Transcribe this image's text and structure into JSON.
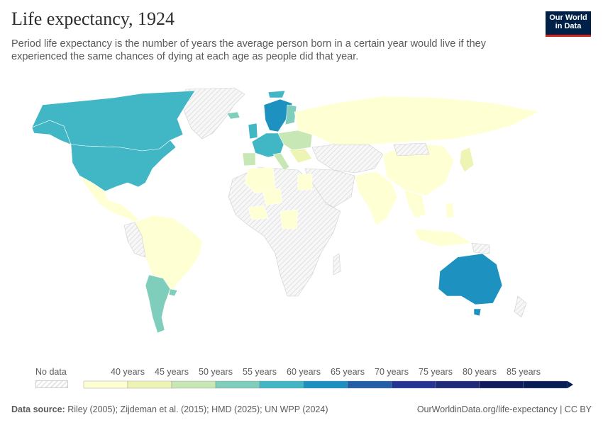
{
  "header": {
    "title": "Life expectancy, 1924",
    "subtitle": "Period life expectancy is the number of years the average person born in a certain year would live if they experienced the same chances of dying at each age as people did that year."
  },
  "logo": {
    "line1": "Our World",
    "line2": "in Data"
  },
  "legend": {
    "no_data_label": "No data",
    "bins": [
      {
        "label": "40 years",
        "color": "#ffffd4"
      },
      {
        "label": "45 years",
        "color": "#eef5b4"
      },
      {
        "label": "50 years",
        "color": "#c7e8b5"
      },
      {
        "label": "55 years",
        "color": "#7fcdbb"
      },
      {
        "label": "60 years",
        "color": "#41b6c4"
      },
      {
        "label": "65 years",
        "color": "#1d91c0"
      },
      {
        "label": "70 years",
        "color": "#225ea8"
      },
      {
        "label": "75 years",
        "color": "#253494"
      },
      {
        "label": "80 years",
        "color": "#1f2a7a"
      },
      {
        "label": "85 years",
        "color": "#0f1b5c"
      }
    ],
    "last_color": "#081d58"
  },
  "footer": {
    "source_label": "Data source:",
    "source_text": "Riley (2005); Zijdeman et al. (2015); HMD (2025); UN WPP (2024)",
    "url": "OurWorldinData.org/life-expectancy | CC BY"
  },
  "colors": {
    "lowest": "#ffffd4",
    "low": "#eef5b4",
    "mid_low": "#c7e8b5",
    "mid": "#7fcdbb",
    "mid_high": "#41b6c4",
    "high": "#1d91c0",
    "no_data": "#f0f0f0"
  }
}
